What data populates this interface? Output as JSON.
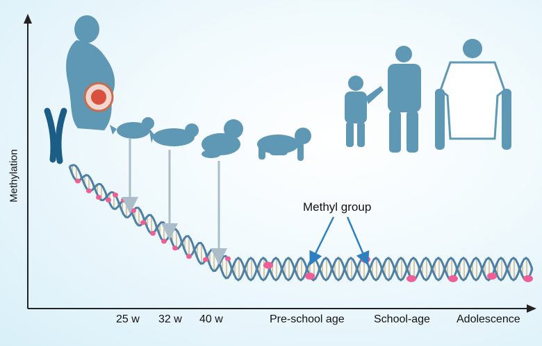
{
  "y_axis_label": "Methylation",
  "x_ticks": [
    "25 w",
    "32 w",
    "40 w",
    "Pre-school age",
    "School-age",
    "Adolescence"
  ],
  "annotation": "Methyl group",
  "colors": {
    "silhouette": "#5f98b4",
    "chromosome": "#1c5d86",
    "dna_strand": "#4e7fa5",
    "methyl": "#ef5f96",
    "arrow": "#aabdc8",
    "pointer": "#2d7fc0",
    "axis": "#222222"
  }
}
